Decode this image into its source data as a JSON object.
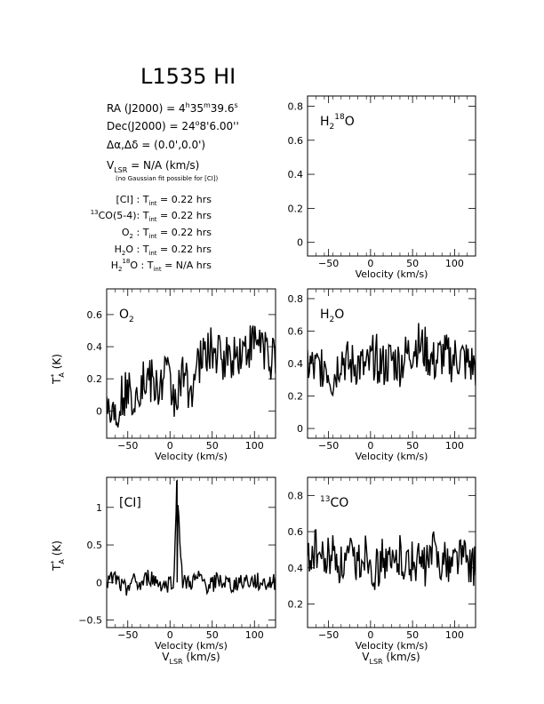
{
  "title": "L1535 HI",
  "info": {
    "ra": {
      "prefix": "RA (J2000) =  4",
      "h": "h",
      "m_val": "35",
      "m": "m",
      "s_val": "39.6",
      "s": "s"
    },
    "dec": {
      "prefix": "Dec(J2000) =  24",
      "deg": "o",
      "rest": "8'6.00''"
    },
    "offset": "Δα,Δδ = (0.0',0.0')",
    "vlsr": {
      "v": "V",
      "sub": "LSR",
      "rest": " = N/A  (km/s)"
    },
    "note": "(no Gaussian fit possible for [CI])",
    "tint_lines": [
      {
        "pre": "",
        "label": "[CI] : T",
        "sub": "int",
        "rest": " = 0.22 hrs"
      },
      {
        "pre": "13",
        "label": "CO(5-4): T",
        "sub": "int",
        "rest": " = 0.22 hrs"
      },
      {
        "pre": "",
        "label": "O",
        "osub": "2",
        "label2": " : T",
        "sub": "int",
        "rest": " = 0.22 hrs"
      },
      {
        "pre": "",
        "label": "H",
        "osub": "2",
        "label2": "O : T",
        "sub": "int",
        "rest": " = 0.22 hrs"
      },
      {
        "pre": "",
        "label": "H",
        "osub": "2",
        "sup": "18",
        "label2": "O : T",
        "sub": "int",
        "rest": " = N/A hrs"
      }
    ]
  },
  "chart_data": [
    {
      "id": "h218o",
      "type": "line",
      "species": {
        "a": "H",
        "sub": "2",
        "sup": "18",
        "b": "O"
      },
      "xlabel": "Velocity (km/s)",
      "ylabel": "",
      "xlim": [
        -75,
        125
      ],
      "ylim": [
        -0.08,
        0.86
      ],
      "xticks": [
        -50,
        0,
        50,
        100
      ],
      "yticks": [
        0,
        0.2,
        0.4,
        0.6,
        0.8
      ],
      "x": [],
      "values": []
    },
    {
      "id": "o2",
      "type": "line",
      "species": {
        "a": "O",
        "sub": "2",
        "sup": "",
        "b": ""
      },
      "xlabel": "Velocity (km/s)",
      "ylabel": "T*A (K)",
      "xlim": [
        -75,
        125
      ],
      "ylim": [
        -0.17,
        0.76
      ],
      "xticks": [
        -50,
        0,
        50,
        100
      ],
      "yticks": [
        0,
        0.2,
        0.4,
        0.6
      ],
      "x": [
        -75,
        -65,
        -55,
        -45,
        -35,
        -25,
        -15,
        -5,
        5,
        15,
        25,
        35,
        45,
        55,
        65,
        75,
        85,
        95,
        105,
        115,
        125
      ],
      "values": [
        0.05,
        0.0,
        0.12,
        0.1,
        0.18,
        0.2,
        0.12,
        0.25,
        0.08,
        0.2,
        0.15,
        0.3,
        0.38,
        0.35,
        0.33,
        0.35,
        0.38,
        0.4,
        0.45,
        0.38,
        0.28
      ]
    },
    {
      "id": "h2o",
      "type": "line",
      "species": {
        "a": "H",
        "sub": "2",
        "sup": "",
        "b": "O"
      },
      "xlabel": "Velocity (km/s)",
      "ylabel": "",
      "xlim": [
        -75,
        125
      ],
      "ylim": [
        -0.06,
        0.86
      ],
      "xticks": [
        -50,
        0,
        50,
        100
      ],
      "yticks": [
        0,
        0.2,
        0.4,
        0.6,
        0.8
      ],
      "x": [
        -75,
        -65,
        -55,
        -45,
        -35,
        -25,
        -15,
        -5,
        5,
        15,
        25,
        35,
        45,
        55,
        65,
        75,
        85,
        95,
        105,
        115,
        125
      ],
      "values": [
        0.4,
        0.35,
        0.42,
        0.3,
        0.45,
        0.38,
        0.4,
        0.35,
        0.45,
        0.38,
        0.42,
        0.4,
        0.46,
        0.52,
        0.48,
        0.4,
        0.45,
        0.42,
        0.44,
        0.4,
        0.38
      ]
    },
    {
      "id": "ci",
      "type": "line",
      "species": {
        "a": "[CI]",
        "sub": "",
        "sup": "",
        "b": ""
      },
      "xlabel": "Velocity (km/s)",
      "xlabel2": "V_LSR (km/s)",
      "ylabel": "T*A (K)",
      "xlim": [
        -75,
        125
      ],
      "ylim": [
        -0.6,
        1.4
      ],
      "xticks": [
        -50,
        0,
        50,
        100
      ],
      "yticks": [
        -0.5,
        0,
        0.5,
        1
      ],
      "x": [
        -75,
        -65,
        -55,
        -45,
        -35,
        -25,
        -15,
        -5,
        5,
        8,
        15,
        25,
        35,
        45,
        55,
        65,
        75,
        85,
        95,
        105,
        115,
        125
      ],
      "values": [
        0.0,
        0.05,
        -0.1,
        0.02,
        -0.05,
        0.08,
        0.0,
        -0.05,
        0.05,
        1.35,
        -0.02,
        0.0,
        0.05,
        -0.05,
        0.02,
        0.0,
        -0.05,
        0.05,
        0.0,
        0.02,
        -0.02,
        0.0
      ]
    },
    {
      "id": "13co",
      "type": "line",
      "species": {
        "a": "CO",
        "sub": "",
        "sup": "13",
        "b": ""
      },
      "xlabel": "Velocity (km/s)",
      "xlabel2": "V_LSR (km/s)",
      "ylabel": "",
      "xlim": [
        -75,
        125
      ],
      "ylim": [
        0.07,
        0.9
      ],
      "xticks": [
        -50,
        0,
        50,
        100
      ],
      "yticks": [
        0.2,
        0.4,
        0.6,
        0.8
      ],
      "x": [
        -75,
        -65,
        -55,
        -45,
        -35,
        -25,
        -15,
        -5,
        5,
        15,
        25,
        35,
        45,
        55,
        65,
        75,
        85,
        95,
        105,
        115,
        125
      ],
      "values": [
        0.45,
        0.5,
        0.42,
        0.48,
        0.4,
        0.45,
        0.42,
        0.5,
        0.38,
        0.45,
        0.4,
        0.48,
        0.42,
        0.45,
        0.4,
        0.5,
        0.44,
        0.42,
        0.48,
        0.45,
        0.4
      ]
    }
  ]
}
